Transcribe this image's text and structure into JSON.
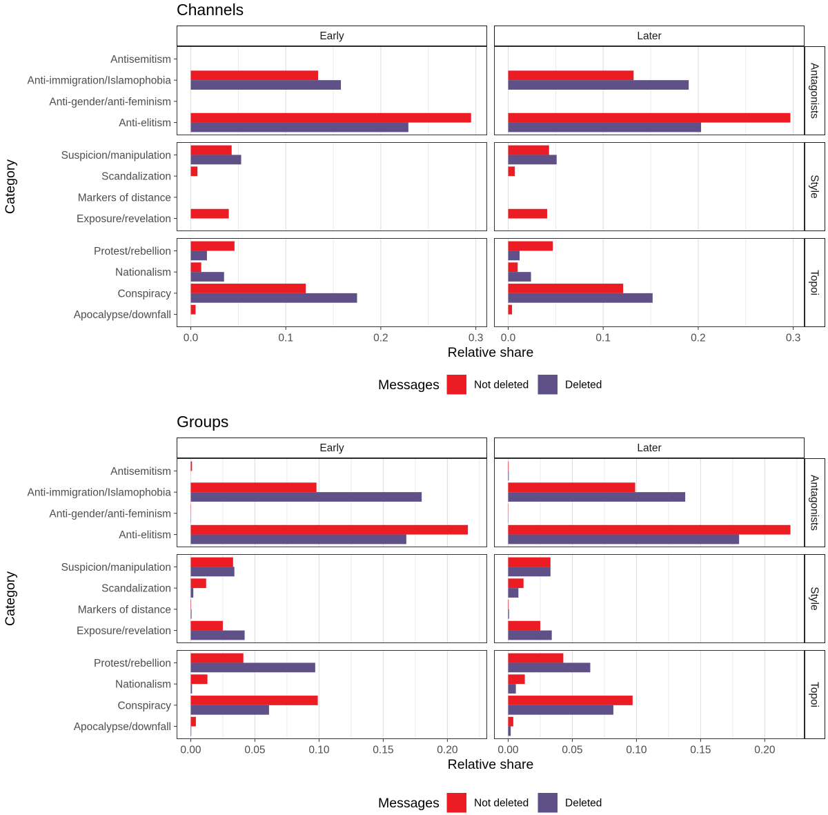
{
  "chart_data": [
    {
      "type": "bar",
      "orientation": "horizontal",
      "title": "Channels",
      "xlabel": "Relative share",
      "ylabel": "Category",
      "xlim": [
        -0.0149,
        0.3119
      ],
      "x_ticks": [
        0,
        0.1,
        0.2,
        0.3
      ],
      "x_tick_labels": [
        "0.0",
        "0.1",
        "0.2",
        "0.3"
      ],
      "grid": true,
      "facet_columns": [
        "Early",
        "Later"
      ],
      "facet_rows": [
        {
          "label": "Antagonists",
          "categories": [
            "Antisemitism",
            "Anti-immigration/Islamophobia",
            "Anti-gender/anti-feminism",
            "Anti-elitism"
          ]
        },
        {
          "label": "Style",
          "categories": [
            "Suspicion/manipulation",
            "Scandalization",
            "Markers of distance",
            "Exposure/revelation"
          ]
        },
        {
          "label": "Topoi",
          "categories": [
            "Protest/rebellion",
            "Nationalism",
            "Conspiracy",
            "Apocalypse/downfall"
          ]
        }
      ],
      "legend": {
        "title": "Messages",
        "position": "bottom"
      },
      "series": [
        {
          "name": "Not deleted",
          "color": "#ec1c24",
          "values": {
            "Early": [
              [
                0,
                0.134,
                0,
                0.295
              ],
              [
                0.043,
                0.007,
                0,
                0.04
              ],
              [
                0.046,
                0.011,
                0.121,
                0.005
              ]
            ],
            "Later": [
              [
                0,
                0.132,
                0,
                0.297
              ],
              [
                0.043,
                0.007,
                0,
                0.041
              ],
              [
                0.047,
                0.01,
                0.121,
                0.004
              ]
            ]
          }
        },
        {
          "name": "Deleted",
          "color": "#5f5087",
          "values": {
            "Early": [
              [
                0,
                0.158,
                0,
                0.229
              ],
              [
                0.053,
                0,
                0,
                0
              ],
              [
                0.017,
                0.035,
                0.175,
                0
              ]
            ],
            "Later": [
              [
                0,
                0.19,
                0,
                0.203
              ],
              [
                0.051,
                0,
                0,
                0
              ],
              [
                0.012,
                0.024,
                0.152,
                0
              ]
            ]
          }
        }
      ]
    },
    {
      "type": "bar",
      "orientation": "horizontal",
      "title": "Groups",
      "xlabel": "Relative share",
      "ylabel": "Category",
      "xlim": [
        -0.011,
        0.231
      ],
      "x_ticks": [
        0,
        0.05,
        0.1,
        0.15,
        0.2
      ],
      "x_tick_labels": [
        "0.00",
        "0.05",
        "0.10",
        "0.15",
        "0.20"
      ],
      "grid": true,
      "facet_columns": [
        "Early",
        "Later"
      ],
      "facet_rows": [
        {
          "label": "Antagonists",
          "categories": [
            "Antisemitism",
            "Anti-immigration/Islamophobia",
            "Anti-gender/anti-feminism",
            "Anti-elitism"
          ]
        },
        {
          "label": "Style",
          "categories": [
            "Suspicion/manipulation",
            "Scandalization",
            "Markers of distance",
            "Exposure/revelation"
          ]
        },
        {
          "label": "Topoi",
          "categories": [
            "Protest/rebellion",
            "Nationalism",
            "Conspiracy",
            "Apocalypse/downfall"
          ]
        }
      ],
      "legend": {
        "title": "Messages",
        "position": "bottom"
      },
      "series": [
        {
          "name": "Not deleted",
          "color": "#ec1c24",
          "values": {
            "Early": [
              [
                0.001,
                0.098,
                0.0002,
                0.216
              ],
              [
                0.033,
                0.012,
                0.0003,
                0.025
              ],
              [
                0.041,
                0.013,
                0.099,
                0.004
              ]
            ],
            "Later": [
              [
                0.0004,
                0.099,
                0.0002,
                0.22
              ],
              [
                0.033,
                0.012,
                0.0004,
                0.025
              ],
              [
                0.043,
                0.013,
                0.097,
                0.004
              ]
            ]
          }
        },
        {
          "name": "Deleted",
          "color": "#5f5087",
          "values": {
            "Early": [
              [
                0,
                0.18,
                0.0002,
                0.168
              ],
              [
                0.034,
                0.002,
                0.0006,
                0.042
              ],
              [
                0.097,
                0.001,
                0.061,
                0.0004
              ]
            ],
            "Later": [
              [
                0.0005,
                0.138,
                0.0002,
                0.18
              ],
              [
                0.033,
                0.008,
                0.0007,
                0.034
              ],
              [
                0.064,
                0.006,
                0.082,
                0.002
              ]
            ]
          }
        }
      ]
    }
  ]
}
